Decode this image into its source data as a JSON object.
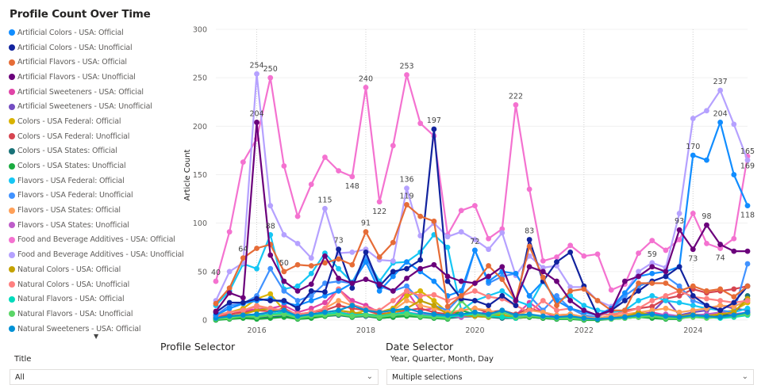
{
  "chart_data": {
    "type": "line",
    "title": "Profile Count Over Time",
    "ylabel": "Article Count",
    "xlabel": "",
    "ylim": [
      0,
      300
    ],
    "yticks": [
      0,
      50,
      100,
      150,
      200,
      250,
      300
    ],
    "xticks": [
      {
        "value": 2016,
        "label": "2016"
      },
      {
        "value": 2018,
        "label": "2018"
      },
      {
        "value": 2020,
        "label": "2020"
      },
      {
        "value": 2022,
        "label": "2022"
      },
      {
        "value": 2024,
        "label": "2024"
      }
    ],
    "x_start": 2015.25,
    "x_step": 0.25,
    "grid": true,
    "legend_position": "left",
    "series": [
      {
        "name": "Artificial Colors - USA: Official",
        "color": "#118DFF",
        "values": [
          5,
          12,
          17,
          20,
          22,
          18,
          15,
          20,
          25,
          30,
          38,
          60,
          30,
          45,
          60,
          50,
          40,
          25,
          30,
          72,
          40,
          50,
          48,
          25,
          40,
          20,
          12,
          8,
          5,
          12,
          28,
          45,
          48,
          50,
          55,
          170,
          165,
          204,
          150,
          118
        ]
      },
      {
        "name": "Artificial Colors - USA: Unofficial",
        "color": "#12239E",
        "values": [
          8,
          18,
          18,
          22,
          20,
          20,
          12,
          30,
          29,
          73,
          33,
          70,
          35,
          50,
          53,
          62,
          197,
          40,
          22,
          20,
          15,
          25,
          15,
          83,
          40,
          60,
          70,
          35,
          5,
          10,
          20,
          30,
          40,
          45,
          55,
          25,
          15,
          10,
          18,
          35
        ]
      },
      {
        "name": "Artificial Flavors - USA: Official",
        "color": "#E66C37",
        "values": [
          17,
          33,
          64,
          74,
          78,
          50,
          57,
          56,
          59,
          63,
          57,
          91,
          65,
          80,
          119,
          107,
          102,
          14,
          25,
          38,
          56,
          42,
          20,
          76,
          44,
          15,
          30,
          32,
          20,
          10,
          10,
          38,
          38,
          38,
          30,
          35,
          30,
          32,
          24,
          35
        ]
      },
      {
        "name": "Artificial Flavors - USA: Unofficial",
        "color": "#6B007B",
        "values": [
          9,
          28,
          23,
          204,
          67,
          40,
          30,
          37,
          66,
          43,
          38,
          42,
          37,
          30,
          43,
          53,
          57,
          45,
          40,
          38,
          45,
          55,
          20,
          55,
          50,
          40,
          20,
          10,
          5,
          10,
          40,
          45,
          55,
          50,
          93,
          73,
          98,
          78,
          71,
          71
        ]
      },
      {
        "name": "Artificial Sweeteners - USA: Official",
        "color": "#E044A7",
        "values": [
          3,
          5,
          10,
          11,
          12,
          15,
          8,
          12,
          18,
          32,
          20,
          15,
          8,
          12,
          30,
          10,
          12,
          8,
          6,
          4,
          10,
          6,
          5,
          18,
          8,
          3,
          5,
          2,
          2,
          3,
          5,
          6,
          8,
          5,
          4,
          6,
          4,
          3,
          5,
          8
        ]
      },
      {
        "name": "Artificial Sweeteners - USA: Unofficial",
        "color": "#744EC2",
        "values": [
          2,
          3,
          5,
          4,
          6,
          8,
          4,
          6,
          5,
          8,
          6,
          5,
          4,
          6,
          8,
          5,
          4,
          3,
          4,
          5,
          6,
          3,
          2,
          4,
          3,
          2,
          3,
          2,
          1,
          2,
          4,
          5,
          8,
          22,
          5,
          8,
          10,
          15,
          12,
          10
        ]
      },
      {
        "name": "Colors - USA Federal: Official",
        "color": "#D9B300",
        "values": [
          5,
          8,
          12,
          22,
          27,
          10,
          6,
          5,
          4,
          8,
          6,
          10,
          8,
          12,
          25,
          30,
          20,
          8,
          6,
          5,
          4,
          6,
          3,
          4,
          2,
          2,
          3,
          1,
          1,
          2,
          4,
          8,
          5,
          3,
          4,
          6,
          5,
          8,
          10,
          18
        ]
      },
      {
        "name": "Colors - USA Federal: Unofficial",
        "color": "#D64550",
        "values": [
          3,
          6,
          8,
          10,
          9,
          12,
          5,
          8,
          10,
          15,
          12,
          10,
          6,
          8,
          10,
          12,
          8,
          6,
          10,
          12,
          8,
          10,
          6,
          12,
          8,
          5,
          6,
          3,
          2,
          4,
          10,
          12,
          14,
          22,
          25,
          32,
          28,
          30,
          32,
          35
        ]
      },
      {
        "name": "Colors - USA States: Official",
        "color": "#197278",
        "values": [
          1,
          2,
          3,
          2,
          3,
          4,
          2,
          3,
          4,
          5,
          3,
          4,
          2,
          3,
          5,
          4,
          3,
          2,
          3,
          4,
          3,
          2,
          2,
          3,
          2,
          1,
          2,
          1,
          1,
          1,
          2,
          3,
          4,
          3,
          2,
          4,
          3,
          5,
          6,
          25
        ]
      },
      {
        "name": "Colors - USA States: Unofficial",
        "color": "#1AAB40",
        "values": [
          0,
          1,
          2,
          1,
          2,
          3,
          1,
          2,
          4,
          6,
          3,
          5,
          2,
          3,
          4,
          3,
          2,
          1,
          10,
          6,
          4,
          8,
          2,
          3,
          2,
          1,
          1,
          0,
          0,
          1,
          2,
          3,
          2,
          1,
          1,
          5,
          4,
          3,
          4,
          6
        ]
      },
      {
        "name": "Flavors - USA Federal: Official",
        "color": "#15C6F4",
        "values": [
          15,
          30,
          58,
          53,
          88,
          32,
          35,
          48,
          69,
          53,
          39,
          65,
          40,
          59,
          60,
          70,
          88,
          75,
          10,
          20,
          25,
          30,
          20,
          15,
          40,
          20,
          25,
          15,
          10,
          8,
          10,
          20,
          25,
          20,
          18,
          15,
          12,
          10,
          8,
          12
        ]
      },
      {
        "name": "Flavors - USA Federal: Unofficial",
        "color": "#4092FF",
        "values": [
          5,
          15,
          17,
          25,
          53,
          30,
          20,
          25,
          38,
          40,
          38,
          65,
          35,
          30,
          35,
          20,
          15,
          10,
          25,
          72,
          38,
          45,
          48,
          25,
          10,
          25,
          12,
          5,
          3,
          10,
          25,
          35,
          40,
          45,
          35,
          20,
          15,
          10,
          8,
          58
        ]
      },
      {
        "name": "Flavors - USA States: Official",
        "color": "#FFA058",
        "values": [
          4,
          8,
          10,
          15,
          12,
          10,
          6,
          8,
          12,
          20,
          15,
          12,
          8,
          10,
          20,
          15,
          12,
          8,
          10,
          12,
          10,
          6,
          4,
          10,
          8,
          5,
          6,
          3,
          2,
          4,
          6,
          8,
          10,
          12,
          8,
          10,
          12,
          15,
          14,
          20
        ]
      },
      {
        "name": "Flavors - USA States: Unofficial",
        "color": "#BE5DC9",
        "values": [
          2,
          3,
          5,
          6,
          5,
          8,
          4,
          5,
          6,
          8,
          6,
          5,
          4,
          5,
          8,
          6,
          5,
          4,
          3,
          5,
          4,
          3,
          2,
          5,
          4,
          3,
          2,
          1,
          1,
          2,
          3,
          4,
          5,
          6,
          4,
          5,
          6,
          8,
          6,
          8
        ]
      },
      {
        "name": "Food and Beverage Additives - USA: Official",
        "color": "#F472D0",
        "values": [
          40,
          91,
          163,
          187,
          250,
          159,
          107,
          140,
          168,
          154,
          148,
          240,
          122,
          180,
          253,
          203,
          190,
          88,
          113,
          118,
          84,
          94,
          222,
          135,
          61,
          65,
          77,
          66,
          68,
          31,
          37,
          69,
          82,
          72,
          83,
          110,
          79,
          74,
          84,
          169
        ]
      },
      {
        "name": "Food and Beverage Additives - USA: Unofficial",
        "color": "#B5A1FF",
        "values": [
          20,
          50,
          59,
          254,
          118,
          88,
          79,
          64,
          115,
          69,
          70,
          73,
          62,
          61,
          136,
          87,
          100,
          86,
          91,
          83,
          73,
          90,
          46,
          66,
          54,
          56,
          34,
          34,
          20,
          14,
          28,
          50,
          59,
          54,
          110,
          208,
          216,
          237,
          202,
          165
        ]
      },
      {
        "name": "Natural Colors - USA: Official",
        "color": "#C4A200",
        "values": [
          2,
          4,
          6,
          10,
          12,
          8,
          5,
          6,
          8,
          10,
          8,
          6,
          5,
          8,
          12,
          20,
          15,
          6,
          5,
          4,
          3,
          5,
          2,
          4,
          3,
          2,
          2,
          1,
          1,
          2,
          3,
          8,
          5,
          3,
          4,
          5,
          4,
          6,
          8,
          22
        ]
      },
      {
        "name": "Natural Colors - USA: Unofficial",
        "color": "#FF8080",
        "values": [
          4,
          8,
          10,
          14,
          12,
          10,
          6,
          8,
          12,
          32,
          16,
          12,
          10,
          20,
          30,
          25,
          26,
          20,
          25,
          30,
          24,
          22,
          15,
          8,
          20,
          10,
          12,
          8,
          5,
          6,
          8,
          12,
          20,
          25,
          30,
          24,
          22,
          20,
          18,
          20
        ]
      },
      {
        "name": "Natural Flavors - USA: Official",
        "color": "#00DBBC",
        "values": [
          1,
          3,
          5,
          4,
          6,
          8,
          3,
          5,
          6,
          8,
          5,
          6,
          4,
          6,
          8,
          5,
          4,
          3,
          5,
          6,
          4,
          3,
          2,
          5,
          3,
          2,
          2,
          1,
          1,
          2,
          3,
          4,
          5,
          3,
          2,
          4,
          3,
          2,
          3,
          5
        ]
      },
      {
        "name": "Natural Flavors - USA: Unofficial",
        "color": "#5BD667",
        "values": [
          1,
          2,
          4,
          3,
          5,
          6,
          2,
          4,
          5,
          6,
          4,
          5,
          3,
          5,
          6,
          4,
          3,
          2,
          20,
          6,
          4,
          8,
          3,
          4,
          3,
          2,
          2,
          1,
          1,
          1,
          2,
          3,
          4,
          2,
          2,
          3,
          2,
          3,
          4,
          6
        ]
      },
      {
        "name": "Natural Sweeteners - USA: Official",
        "color": "#0091D5",
        "values": [
          2,
          4,
          5,
          6,
          8,
          10,
          4,
          6,
          8,
          10,
          15,
          10,
          8,
          10,
          12,
          8,
          6,
          5,
          6,
          8,
          6,
          10,
          5,
          6,
          4,
          3,
          4,
          2,
          1,
          2,
          3,
          5,
          6,
          4,
          3,
          5,
          4,
          3,
          5,
          8
        ]
      }
    ],
    "data_labels": [
      {
        "series": 14,
        "index": 0,
        "pos": "above"
      },
      {
        "series": 14,
        "index": 4,
        "pos": "above"
      },
      {
        "series": 14,
        "index": 10,
        "pos": "below"
      },
      {
        "series": 14,
        "index": 11,
        "pos": "above"
      },
      {
        "series": 14,
        "index": 12,
        "pos": "below"
      },
      {
        "series": 14,
        "index": 14,
        "pos": "above"
      },
      {
        "series": 14,
        "index": 22,
        "pos": "above"
      },
      {
        "series": 14,
        "index": 39,
        "pos": "below"
      },
      {
        "series": 14,
        "index": 37,
        "pos": "below"
      },
      {
        "series": 15,
        "index": 3,
        "pos": "above"
      },
      {
        "series": 15,
        "index": 8,
        "pos": "above"
      },
      {
        "series": 15,
        "index": 14,
        "pos": "above"
      },
      {
        "series": 15,
        "index": 37,
        "pos": "above"
      },
      {
        "series": 15,
        "index": 39,
        "pos": "above"
      },
      {
        "series": 15,
        "index": 32,
        "pos": "above"
      },
      {
        "series": 0,
        "index": 35,
        "pos": "above"
      },
      {
        "series": 0,
        "index": 37,
        "pos": "above"
      },
      {
        "series": 0,
        "index": 39,
        "pos": "below"
      },
      {
        "series": 1,
        "index": 16,
        "pos": "above"
      },
      {
        "series": 1,
        "index": 9,
        "pos": "above"
      },
      {
        "series": 1,
        "index": 23,
        "pos": "above"
      },
      {
        "series": 3,
        "index": 3,
        "pos": "above"
      },
      {
        "series": 3,
        "index": 34,
        "pos": "above"
      },
      {
        "series": 3,
        "index": 36,
        "pos": "above"
      },
      {
        "series": 3,
        "index": 35,
        "pos": "below"
      },
      {
        "series": 2,
        "index": 11,
        "pos": "above"
      },
      {
        "series": 2,
        "index": 14,
        "pos": "above"
      },
      {
        "series": 2,
        "index": 2,
        "pos": "above"
      },
      {
        "series": 2,
        "index": 5,
        "pos": "above"
      },
      {
        "series": 10,
        "index": 4,
        "pos": "above"
      },
      {
        "series": 11,
        "index": 19,
        "pos": "above"
      }
    ]
  },
  "slicers": {
    "profile": {
      "heading": "Profile Selector",
      "field": "Title",
      "value": "All"
    },
    "date": {
      "heading": "Date Selector",
      "field": "Year, Quarter, Month, Day",
      "value": "Multiple selections"
    }
  }
}
